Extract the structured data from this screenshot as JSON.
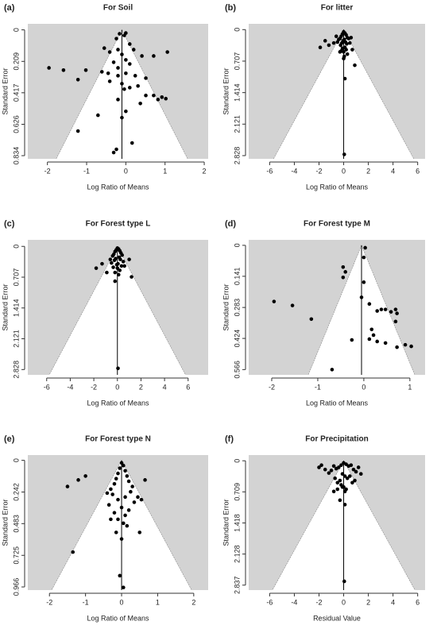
{
  "chart_data": [
    {
      "type": "funnel",
      "panel_label": "(a)",
      "title": "For Soil",
      "xlabel": "Log Ratio of Means",
      "ylabel": "Standard Error",
      "xlim": [
        -2.5,
        2.1
      ],
      "ylim": [
        -0.04,
        0.855
      ],
      "y_inverted": true,
      "xticks": [
        -2,
        -1,
        0,
        1,
        2
      ],
      "yticks": [
        0,
        0.209,
        0.417,
        0.626,
        0.834
      ],
      "funnel_center": -0.1,
      "funnel_z": 1.96,
      "background": "#d3d3d3",
      "color": "#000000",
      "x": [
        -0.16,
        -0.04,
        0,
        -0.24,
        0.1,
        -0.55,
        -0.41,
        -0.2,
        -0.1,
        0.2,
        0.41,
        0,
        -0.31,
        -0.2,
        0.1,
        -1.02,
        -1.96,
        -1.59,
        -0.45,
        -0.2,
        0,
        0.24,
        -0.61,
        0.51,
        -1.22,
        -0.41,
        -0.1,
        0.1,
        0.31,
        0.71,
        0.82,
        0.51,
        1.06,
        0.71,
        0.92,
        1.02,
        -0.2,
        0.37,
        0,
        -0.71,
        -0.1,
        0.16,
        -1.22,
        -0.24,
        -0.31,
        -0.04
      ],
      "values": [
        0.026,
        0.037,
        0.021,
        0.058,
        0.094,
        0.121,
        0.147,
        0.131,
        0.163,
        0.131,
        0.173,
        0.199,
        0.215,
        0.252,
        0.226,
        0.267,
        0.252,
        0.267,
        0.288,
        0.304,
        0.288,
        0.304,
        0.278,
        0.32,
        0.33,
        0.341,
        0.357,
        0.383,
        0.372,
        0.435,
        0.462,
        0.435,
        0.147,
        0.173,
        0.446,
        0.456,
        0.462,
        0.488,
        0.54,
        0.566,
        0.582,
        0.75,
        0.671,
        0.792,
        0.813,
        0.393
      ]
    },
    {
      "type": "funnel",
      "panel_label": "(b)",
      "title": "For litter",
      "xlabel": "Log Ratio of Means",
      "ylabel": "Standard Error",
      "xlim": [
        -7.7,
        6.6
      ],
      "ylim": [
        -0.13,
        2.9
      ],
      "y_inverted": true,
      "xticks": [
        -6,
        -4,
        -2,
        0,
        2,
        4,
        6
      ],
      "yticks": [
        0,
        0.707,
        1.414,
        2.121,
        2.828
      ],
      "funnel_center": 0,
      "funnel_z": 1.96,
      "background": "#d3d3d3",
      "color": "#000000",
      "x": [
        0,
        0.1,
        -0.1,
        0.2,
        -0.2,
        0.3,
        -0.3,
        0.05,
        -0.05,
        0.15,
        -0.15,
        0.25,
        -0.25,
        0.4,
        -0.4,
        0.5,
        -0.5,
        0.1,
        -0.1,
        0.2,
        -0.2,
        0,
        0.3,
        -0.3,
        0.05,
        -0.6,
        0.6,
        0,
        -1.5,
        -1.9,
        -1.2,
        0.9,
        0.1,
        0.05,
        -0.8,
        0.7
      ],
      "values": [
        0.05,
        0.08,
        0.1,
        0.12,
        0.15,
        0.18,
        0.2,
        0.22,
        0.25,
        0.28,
        0.3,
        0.32,
        0.35,
        0.2,
        0.22,
        0.3,
        0.28,
        0.4,
        0.42,
        0.45,
        0.48,
        0.5,
        0.55,
        0.5,
        0.6,
        0.15,
        0.18,
        0.65,
        0.25,
        0.4,
        0.35,
        0.8,
        1.1,
        2.8,
        0.3,
        0.45
      ]
    },
    {
      "type": "funnel",
      "panel_label": "(c)",
      "title": "For Forest type L",
      "xlabel": "Log Ratio of Means",
      "ylabel": "Standard Error",
      "xlim": [
        -7.6,
        7.7
      ],
      "ylim": [
        -0.15,
        2.95
      ],
      "y_inverted": true,
      "xticks": [
        -6,
        -4,
        -2,
        0,
        2,
        4,
        6
      ],
      "yticks": [
        0,
        0.707,
        1.414,
        2.121,
        2.828
      ],
      "funnel_center": 0,
      "funnel_z": 1.96,
      "background": "#d3d3d3",
      "color": "#000000",
      "x": [
        0,
        0.1,
        -0.1,
        0.2,
        -0.2,
        0.3,
        -0.3,
        0.4,
        -0.4,
        0.15,
        -0.15,
        0.25,
        -0.25,
        0.5,
        -0.5,
        0.05,
        -0.05,
        0.35,
        -0.35,
        0,
        0.2,
        -0.2,
        0.1,
        -0.6,
        -1.8,
        -1.3,
        -0.9,
        1.2,
        -0.2,
        0.05,
        1.0,
        0.6
      ],
      "values": [
        0.04,
        0.06,
        0.08,
        0.1,
        0.12,
        0.15,
        0.18,
        0.2,
        0.22,
        0.25,
        0.28,
        0.3,
        0.32,
        0.35,
        0.38,
        0.4,
        0.42,
        0.45,
        0.48,
        0.5,
        0.55,
        0.6,
        0.65,
        0.3,
        0.5,
        0.4,
        0.6,
        0.7,
        0.8,
        2.8,
        0.3,
        0.45
      ]
    },
    {
      "type": "funnel",
      "panel_label": "(d)",
      "title": "For Forest type M",
      "xlabel": "Log Ratio of Means",
      "ylabel": "Standard Error",
      "xlim": [
        -2.5,
        1.33
      ],
      "ylim": [
        -0.025,
        0.59
      ],
      "y_inverted": true,
      "xticks": [
        -2,
        -1,
        0,
        1
      ],
      "yticks": [
        0,
        0.141,
        0.283,
        0.424,
        0.566
      ],
      "funnel_center": -0.05,
      "funnel_z": 1.96,
      "background": "#d3d3d3",
      "color": "#000000",
      "x": [
        0.03,
        0,
        -0.45,
        -0.4,
        -0.45,
        0,
        -1.95,
        -1.55,
        -1.14,
        -0.05,
        0.12,
        0.29,
        0.38,
        0.47,
        0.59,
        0.72,
        0.69,
        0.17,
        0.12,
        0.21,
        -0.26,
        0.47,
        0.72,
        0.9,
        1.03,
        0.29,
        -0.69,
        0.69
      ],
      "values": [
        0.011,
        0.055,
        0.099,
        0.121,
        0.146,
        0.168,
        0.256,
        0.274,
        0.336,
        0.237,
        0.267,
        0.299,
        0.292,
        0.292,
        0.303,
        0.31,
        0.292,
        0.383,
        0.427,
        0.409,
        0.431,
        0.445,
        0.464,
        0.453,
        0.46,
        0.438,
        0.566,
        0.347
      ]
    },
    {
      "type": "funnel",
      "panel_label": "(e)",
      "title": "For Forest type N",
      "xlabel": "Log Ratio of Means",
      "ylabel": "Standard Error",
      "xlim": [
        -2.6,
        2.4
      ],
      "ylim": [
        -0.04,
        0.99
      ],
      "y_inverted": true,
      "xticks": [
        -2,
        -1,
        0,
        1,
        2
      ],
      "yticks": [
        0,
        0.242,
        0.483,
        0.725,
        0.966
      ],
      "funnel_center": 0,
      "funnel_z": 1.96,
      "background": "#d3d3d3",
      "color": "#000000",
      "x": [
        0,
        0.05,
        -0.05,
        0.1,
        -0.1,
        0.15,
        -0.15,
        0.2,
        -0.2,
        0.3,
        -0.3,
        0.25,
        -0.25,
        0.1,
        -0.1,
        0.35,
        -0.35,
        0,
        0.2,
        -0.2,
        0.1,
        -0.1,
        0.05,
        -0.4,
        0.45,
        -1.5,
        -1.2,
        -1.0,
        -1.35,
        0.65,
        0.55,
        -0.05,
        0.05,
        0.5,
        -0.15,
        0,
        0.15,
        -0.3
      ],
      "values": [
        0.02,
        0.04,
        0.06,
        0.08,
        0.1,
        0.12,
        0.14,
        0.16,
        0.18,
        0.2,
        0.22,
        0.24,
        0.26,
        0.28,
        0.3,
        0.32,
        0.34,
        0.36,
        0.38,
        0.4,
        0.42,
        0.45,
        0.48,
        0.25,
        0.28,
        0.2,
        0.15,
        0.12,
        0.7,
        0.15,
        0.3,
        0.88,
        0.97,
        0.55,
        0.55,
        0.6,
        0.5,
        0.45
      ]
    },
    {
      "type": "funnel",
      "panel_label": "(f)",
      "title": "For Precipitation",
      "xlabel": "Residual Value",
      "ylabel": "Standard Error",
      "xlim": [
        -7.7,
        6.6
      ],
      "ylim": [
        -0.13,
        2.95
      ],
      "y_inverted": true,
      "xticks": [
        -6,
        -4,
        -2,
        0,
        2,
        4,
        6
      ],
      "yticks": [
        0,
        0.709,
        1.418,
        2.128,
        2.837
      ],
      "funnel_center": 0,
      "funnel_z": 1.96,
      "background": "#d3d3d3",
      "color": "#000000",
      "x": [
        0,
        0.2,
        -0.2,
        0.4,
        -0.4,
        0.6,
        -0.6,
        0.8,
        -0.8,
        1.0,
        -1.0,
        1.2,
        -1.2,
        -1.5,
        -1.8,
        -2.0,
        1.4,
        0.1,
        -0.1,
        0.3,
        -0.3,
        0.5,
        -0.5,
        0.7,
        -0.7,
        0,
        0.2,
        -0.2,
        0.1,
        -0.1,
        0.05,
        -0.3,
        0.1,
        -0.8,
        0.9,
        -0.5
      ],
      "values": [
        0.05,
        0.08,
        0.1,
        0.12,
        0.15,
        0.1,
        0.18,
        0.2,
        0.12,
        0.25,
        0.22,
        0.15,
        0.28,
        0.2,
        0.1,
        0.15,
        0.3,
        0.35,
        0.3,
        0.4,
        0.45,
        0.35,
        0.5,
        0.5,
        0.4,
        0.6,
        0.65,
        0.55,
        0.7,
        0.6,
        2.75,
        0.9,
        1.0,
        0.7,
        0.45,
        0.65
      ]
    }
  ]
}
